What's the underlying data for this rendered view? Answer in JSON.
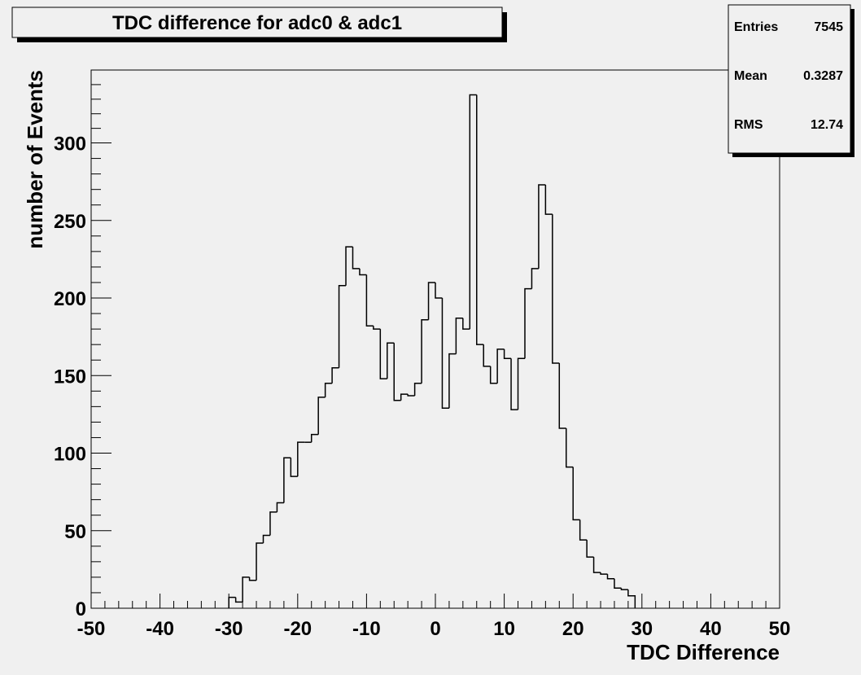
{
  "chart_data": {
    "type": "histogram",
    "title": "TDC difference for adc0 & adc1",
    "x_label": "TDC Difference",
    "y_label": "number of Events",
    "bins": [
      -30,
      -29,
      -28,
      -27,
      -26,
      -25,
      -24,
      -23,
      -22,
      -21,
      -20,
      -19,
      -18,
      -17,
      -16,
      -15,
      -14,
      -13,
      -12,
      -11,
      -10,
      -9,
      -8,
      -7,
      -6,
      -5,
      -4,
      -3,
      -2,
      -1,
      0,
      1,
      2,
      3,
      4,
      5,
      6,
      7,
      8,
      9,
      10,
      11,
      12,
      13,
      14,
      15,
      16,
      17,
      18,
      19,
      20,
      21,
      22,
      23,
      24,
      25,
      26,
      27,
      28,
      29
    ],
    "counts": [
      7,
      4,
      20,
      18,
      42,
      47,
      62,
      68,
      97,
      85,
      107,
      107,
      112,
      136,
      145,
      155,
      208,
      233,
      219,
      215,
      182,
      180,
      148,
      171,
      134,
      138,
      137,
      145,
      186,
      210,
      200,
      129,
      164,
      187,
      180,
      331,
      170,
      156,
      145,
      167,
      161,
      128,
      161,
      206,
      219,
      273,
      254,
      158,
      116,
      91,
      57,
      44,
      33,
      23,
      22,
      19,
      13,
      12,
      8
    ],
    "color": "#000000",
    "xlim": [
      -50,
      50
    ],
    "xticks": [
      -50,
      -40,
      -30,
      -20,
      -10,
      0,
      10,
      20,
      30,
      40,
      50
    ],
    "ylim": [
      0,
      347
    ],
    "yticks": [
      0,
      50,
      100,
      150,
      200,
      250,
      300
    ],
    "stats": [
      {
        "label": "Entries",
        "value": 7545
      },
      {
        "label": "Mean",
        "value": 0.3287
      },
      {
        "label": "RMS",
        "value": 12.74
      }
    ]
  }
}
